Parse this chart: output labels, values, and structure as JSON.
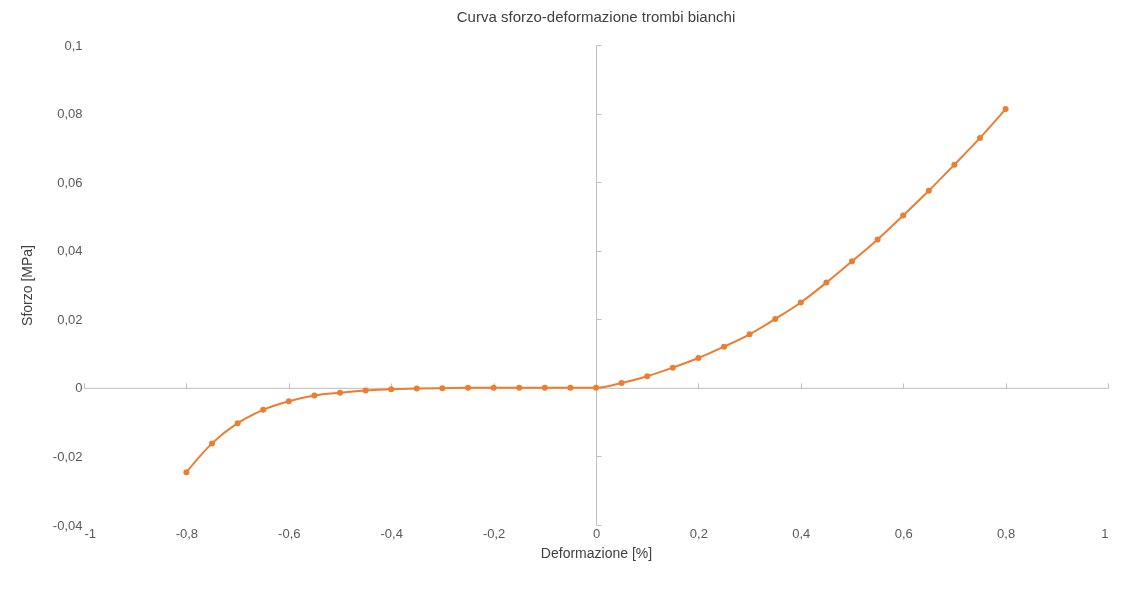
{
  "chart_data": {
    "type": "line",
    "title": "Curva sforzo-deformazione trombi bianchi",
    "xlabel": "Deformazione [%]",
    "ylabel": "Sforzo [MPa]",
    "x": [
      -0.8,
      -0.75,
      -0.7,
      -0.65,
      -0.6,
      -0.55,
      -0.5,
      -0.45,
      -0.4,
      -0.35,
      -0.3,
      -0.25,
      -0.2,
      -0.15,
      -0.1,
      -0.05,
      0,
      0.05,
      0.1,
      0.15,
      0.2,
      0.25,
      0.3,
      0.35,
      0.4,
      0.45,
      0.5,
      0.55,
      0.6,
      0.65,
      0.7,
      0.75,
      0.8
    ],
    "series": [
      {
        "color": "#ed7d31",
        "values": [
          -0.0246,
          -0.0162,
          -0.0103,
          -0.0064,
          -0.0039,
          -0.0022,
          -0.0014,
          -0.0008,
          -0.0004,
          -0.0002,
          -0.0001,
          0,
          0,
          0,
          0,
          0,
          0,
          0.0014,
          0.0034,
          0.0059,
          0.0087,
          0.012,
          0.0156,
          0.0201,
          0.0249,
          0.0307,
          0.0369,
          0.0433,
          0.0503,
          0.0575,
          0.0651,
          0.0729,
          0.0813
        ]
      }
    ],
    "xlim": [
      -1,
      1
    ],
    "ylim": [
      -0.04,
      0.1
    ],
    "xticks": [
      {
        "value": -1,
        "label": "-1"
      },
      {
        "value": -0.8,
        "label": "-0,8"
      },
      {
        "value": -0.6,
        "label": "-0,6"
      },
      {
        "value": -0.4,
        "label": "-0,4"
      },
      {
        "value": -0.2,
        "label": "-0,2"
      },
      {
        "value": 0,
        "label": "0"
      },
      {
        "value": 0.2,
        "label": "0,2"
      },
      {
        "value": 0.4,
        "label": "0,4"
      },
      {
        "value": 0.6,
        "label": "0,6"
      },
      {
        "value": 0.8,
        "label": "0,8"
      },
      {
        "value": 1,
        "label": "1"
      }
    ],
    "yticks": [
      {
        "value": -0.04,
        "label": "-0,04"
      },
      {
        "value": -0.02,
        "label": "-0,02"
      },
      {
        "value": 0,
        "label": "0"
      },
      {
        "value": 0.02,
        "label": "0,02"
      },
      {
        "value": 0.04,
        "label": "0,04"
      },
      {
        "value": 0.06,
        "label": "0,06"
      },
      {
        "value": 0.08,
        "label": "0,08"
      },
      {
        "value": 0.1,
        "label": "0,1"
      }
    ],
    "legend": false,
    "marker": "circle",
    "line_style": "solid"
  }
}
